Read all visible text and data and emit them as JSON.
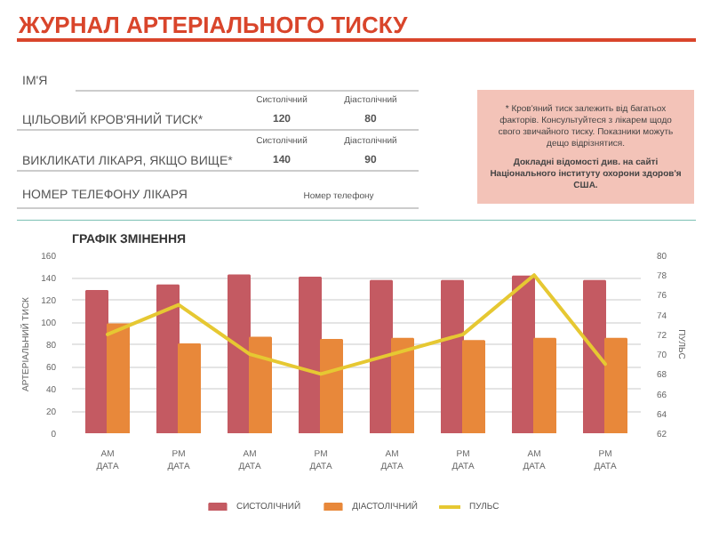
{
  "chart_data": {
    "type": "bar",
    "title": "ЖУРНАЛ АРТЕРІАЛЬНОГО ТИСКУ",
    "subtitle": "ГРАФІК ЗМІНЕННЯ",
    "annotations": [
      "ІМ'Я",
      "ЦІЛЬОВИЙ КРОВ'ЯНИЙ ТИСК*",
      "Систолічний",
      "120",
      "Діастолічний",
      "80",
      "ВИКЛИКАТИ ЛІКАРЯ, ЯКЩО ВИЩЕ*",
      "Систолічний",
      "140",
      "Діастолічний",
      "90",
      "НОМЕР ТЕЛЕФОНУ ЛІКАРЯ",
      "Номер телефону",
      "* Кров'яний тиск залежить від багатьох факторів. Консультуйтеся з лікарем щодо свого звичайного тиску. Показники можуть дещо відрізнятися.",
      "Докладні відомості див. на сайті Національного інституту охорони здоров'я США."
    ],
    "categories": [
      "AM\nДАТА",
      "PM\nДАТА",
      "AM\nДАТА",
      "PM\nДАТА",
      "AM\nДАТА",
      "PM\nДАТА",
      "AM\nДАТА",
      "PM\nДАТА"
    ],
    "ylabel": "АРТЕРІАЛЬНИЙ ТИСК",
    "y2label": "ПУЛЬС",
    "ylim": [
      0,
      160
    ],
    "yticks": [
      0,
      20,
      40,
      60,
      80,
      100,
      120,
      140,
      160
    ],
    "y2lim": [
      62,
      80
    ],
    "y2ticks": [
      62,
      64,
      66,
      68,
      70,
      72,
      74,
      76,
      78,
      80
    ],
    "grid": "y",
    "legend": "bottom",
    "series": [
      {
        "name": "СИСТОЛІЧНИЙ",
        "color": "#c45a62",
        "values": [
          128,
          133,
          142,
          140,
          137,
          137,
          141,
          137
        ]
      },
      {
        "name": "ДІАСТОЛІЧНИЙ",
        "color": "#e8883a",
        "values": [
          98,
          80,
          86,
          84,
          85,
          83,
          85,
          85
        ]
      },
      {
        "name": "ПУЛЬС",
        "type": "line",
        "axis": "y2",
        "color": "#e6c832",
        "values": [
          72,
          75,
          70,
          68,
          70,
          72,
          78,
          69
        ]
      }
    ]
  }
}
